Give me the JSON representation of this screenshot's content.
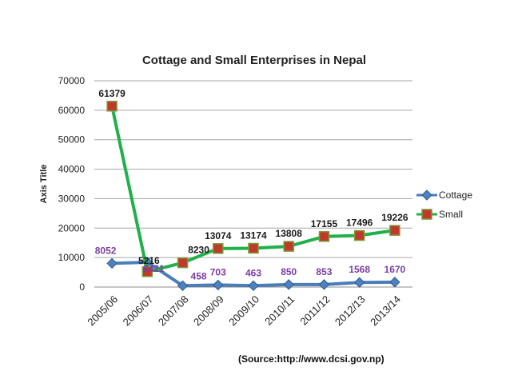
{
  "chart_data": {
    "type": "line",
    "title": "Cottage and Small Enterprises in Nepal",
    "xlabel": "",
    "ylabel": "Axis Title",
    "categories": [
      "2005/06",
      "2006/07",
      "2007/08",
      "2008/09",
      "2009/10",
      "2010/11",
      "2011/12",
      "2012/13",
      "2013/14"
    ],
    "ylim": [
      0,
      70000
    ],
    "yticks": [
      0,
      10000,
      20000,
      30000,
      40000,
      50000,
      60000,
      70000
    ],
    "grid": true,
    "legend": "right",
    "series": [
      {
        "name": "Cottage",
        "values": [
          8052,
          8421,
          458,
          703,
          463,
          850,
          853,
          1568,
          1670
        ],
        "color": "#4a7ebb",
        "marker": "diamond"
      },
      {
        "name": "Small",
        "values": [
          61379,
          5216,
          8230,
          13074,
          13174,
          13808,
          17155,
          17496,
          19226
        ],
        "color": "#22b04a",
        "marker": "square"
      }
    ],
    "annotations": [
      "(Source:http://www.dcsi.gov.np)"
    ]
  }
}
